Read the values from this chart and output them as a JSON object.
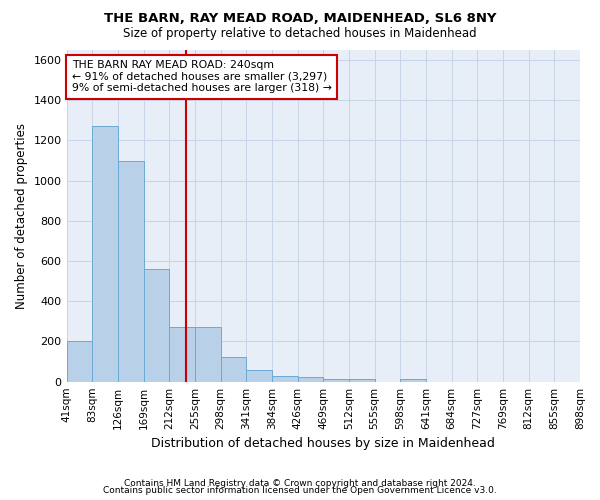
{
  "title": "THE BARN, RAY MEAD ROAD, MAIDENHEAD, SL6 8NY",
  "subtitle": "Size of property relative to detached houses in Maidenhead",
  "xlabel": "Distribution of detached houses by size in Maidenhead",
  "ylabel": "Number of detached properties",
  "footer_line1": "Contains HM Land Registry data © Crown copyright and database right 2024.",
  "footer_line2": "Contains public sector information licensed under the Open Government Licence v3.0.",
  "bin_labels": [
    "41sqm",
    "83sqm",
    "126sqm",
    "169sqm",
    "212sqm",
    "255sqm",
    "298sqm",
    "341sqm",
    "384sqm",
    "426sqm",
    "469sqm",
    "512sqm",
    "555sqm",
    "598sqm",
    "641sqm",
    "684sqm",
    "727sqm",
    "769sqm",
    "812sqm",
    "855sqm",
    "898sqm"
  ],
  "bar_heights": [
    200,
    1270,
    1100,
    560,
    270,
    270,
    125,
    60,
    30,
    25,
    15,
    15,
    0,
    15,
    0,
    0,
    0,
    0,
    0,
    0
  ],
  "bar_color": "#b8d0e8",
  "bar_edge_color": "#6aaad4",
  "grid_color": "#c8d4e8",
  "background_color": "#e8eef8",
  "ylim": [
    0,
    1650
  ],
  "yticks": [
    0,
    200,
    400,
    600,
    800,
    1000,
    1200,
    1400,
    1600
  ],
  "vline_x": 5,
  "vline_color": "#cc0000",
  "annotation_text": "THE BARN RAY MEAD ROAD: 240sqm\n← 91% of detached houses are smaller (3,297)\n9% of semi-detached houses are larger (318) →"
}
